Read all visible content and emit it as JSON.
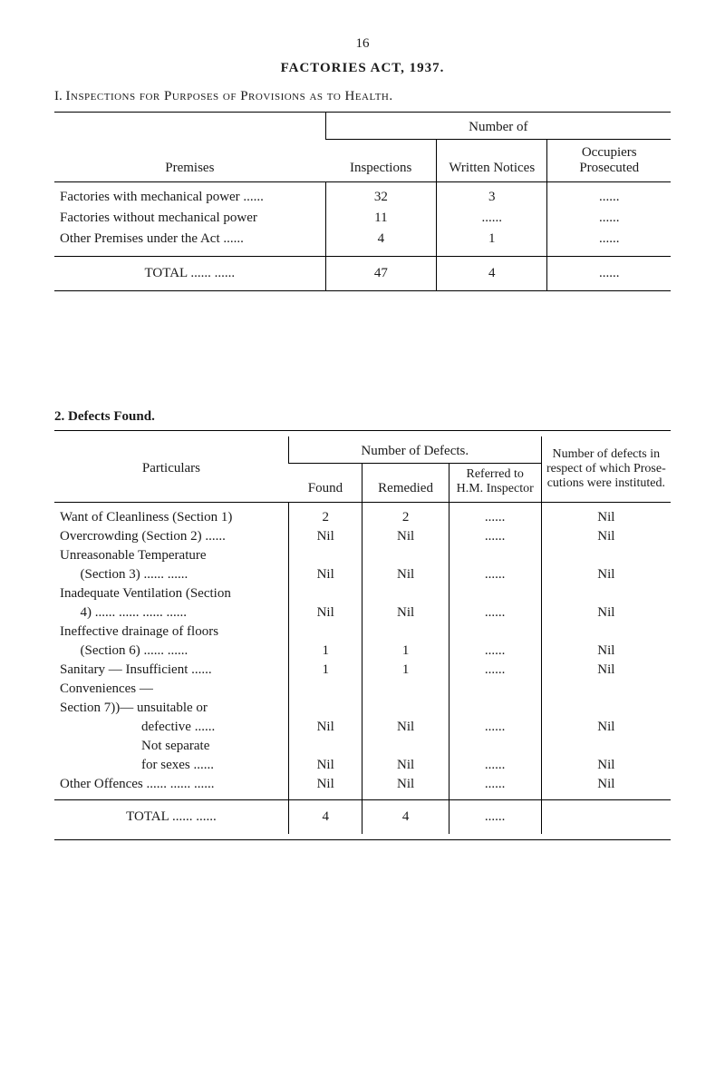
{
  "page_number": "16",
  "act_title": "FACTORIES ACT, 1937.",
  "section1": {
    "number": "I.",
    "title": "Inspections for Purposes of Provisions as to Health.",
    "number_of": "Number    of",
    "headers": {
      "premises": "Premises",
      "inspections": "Inspections",
      "written_notices": "Written Notices",
      "occupiers": "Occupiers Prosecuted"
    },
    "rows": [
      {
        "label": "Factories with mechanical power ......",
        "inspections": "32",
        "notices": "3",
        "prosecuted": "......"
      },
      {
        "label": "Factories without mechanical power",
        "inspections": "11",
        "notices": "......",
        "prosecuted": "......"
      },
      {
        "label": "Other Premises under the Act        ......",
        "inspections": "4",
        "notices": "1",
        "prosecuted": "......"
      }
    ],
    "total": {
      "label": "TOTAL        ......   ......",
      "inspections": "47",
      "notices": "4",
      "prosecuted": "......"
    }
  },
  "section2": {
    "number": "2.",
    "title": "Defects Found.",
    "number_of_defects": "Number of Defects.",
    "headers": {
      "particulars": "Particulars",
      "found": "Found",
      "remedied": "Remedied",
      "referred": "Referred to H.M. Inspector",
      "instituted": "Number of defects in respect of which Prose- cutions were instituted."
    },
    "rows": [
      {
        "label": "Want of Cleanliness (Section 1)",
        "found": "2",
        "remedied": "2",
        "referred": "......",
        "instituted": "Nil"
      },
      {
        "label": "Overcrowding (Section 2)           ......",
        "found": "Nil",
        "remedied": "Nil",
        "referred": "......",
        "instituted": "Nil"
      },
      {
        "label": "Unreasonable Temperature",
        "found": "",
        "remedied": "",
        "referred": "",
        "instituted": ""
      },
      {
        "label": "      (Section 3)           ......   ......",
        "found": "Nil",
        "remedied": "Nil",
        "referred": "......",
        "instituted": "Nil"
      },
      {
        "label": "Inadequate Ventilation (Section",
        "found": "",
        "remedied": "",
        "referred": "",
        "instituted": ""
      },
      {
        "label": "      4)   ......     ......     ......     ......",
        "found": "Nil",
        "remedied": "Nil",
        "referred": "......",
        "instituted": "Nil"
      },
      {
        "label": "Ineffective drainage of floors",
        "found": "",
        "remedied": "",
        "referred": "",
        "instituted": ""
      },
      {
        "label": "      (Section 6)           ......   ......",
        "found": "1",
        "remedied": "1",
        "referred": "......",
        "instituted": "Nil"
      },
      {
        "label": "Sanitary       —     Insufficient   ......",
        "found": "1",
        "remedied": "1",
        "referred": "......",
        "instituted": "Nil"
      },
      {
        "label": "Conveniences —",
        "found": "",
        "remedied": "",
        "referred": "",
        "instituted": ""
      },
      {
        "label": "Section 7))—    unsuitable or",
        "found": "",
        "remedied": "",
        "referred": "",
        "instituted": ""
      },
      {
        "label": "                        defective    ......",
        "found": "Nil",
        "remedied": "Nil",
        "referred": "......",
        "instituted": "Nil"
      },
      {
        "label": "                        Not separate",
        "found": "",
        "remedied": "",
        "referred": "",
        "instituted": ""
      },
      {
        "label": "                        for sexes    ......",
        "found": "Nil",
        "remedied": "Nil",
        "referred": "......",
        "instituted": "Nil"
      },
      {
        "label": "Other Offences    ......    ......    ......",
        "found": "Nil",
        "remedied": "Nil",
        "referred": "......",
        "instituted": "Nil"
      }
    ],
    "total": {
      "label": "TOTAL        ......   ......",
      "found": "4",
      "remedied": "4",
      "referred": "......",
      "instituted": ""
    }
  }
}
